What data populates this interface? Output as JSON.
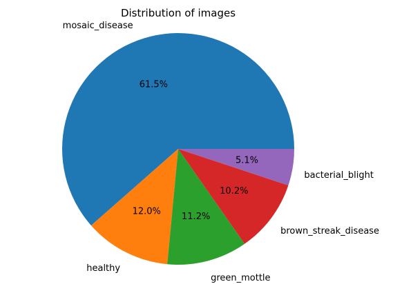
{
  "chart_data": {
    "type": "pie",
    "title": "Distribution of images",
    "slices": [
      {
        "label": "mosaic_disease",
        "percent": 61.5,
        "pct_label": "61.5%",
        "color": "#1f77b4"
      },
      {
        "label": "healthy",
        "percent": 12.0,
        "pct_label": "12.0%",
        "color": "#ff7f0e"
      },
      {
        "label": "green_mottle",
        "percent": 11.2,
        "pct_label": "11.2%",
        "color": "#2ca02c"
      },
      {
        "label": "brown_streak_disease",
        "percent": 10.2,
        "pct_label": "10.2%",
        "color": "#d62728"
      },
      {
        "label": "bacterial_blight",
        "percent": 5.1,
        "pct_label": "5.1%",
        "color": "#9467bd"
      }
    ],
    "start_angle": 0,
    "direction": "counterclockwise",
    "legend": "none",
    "label_placement": "outside",
    "pct_placement": "inside"
  }
}
